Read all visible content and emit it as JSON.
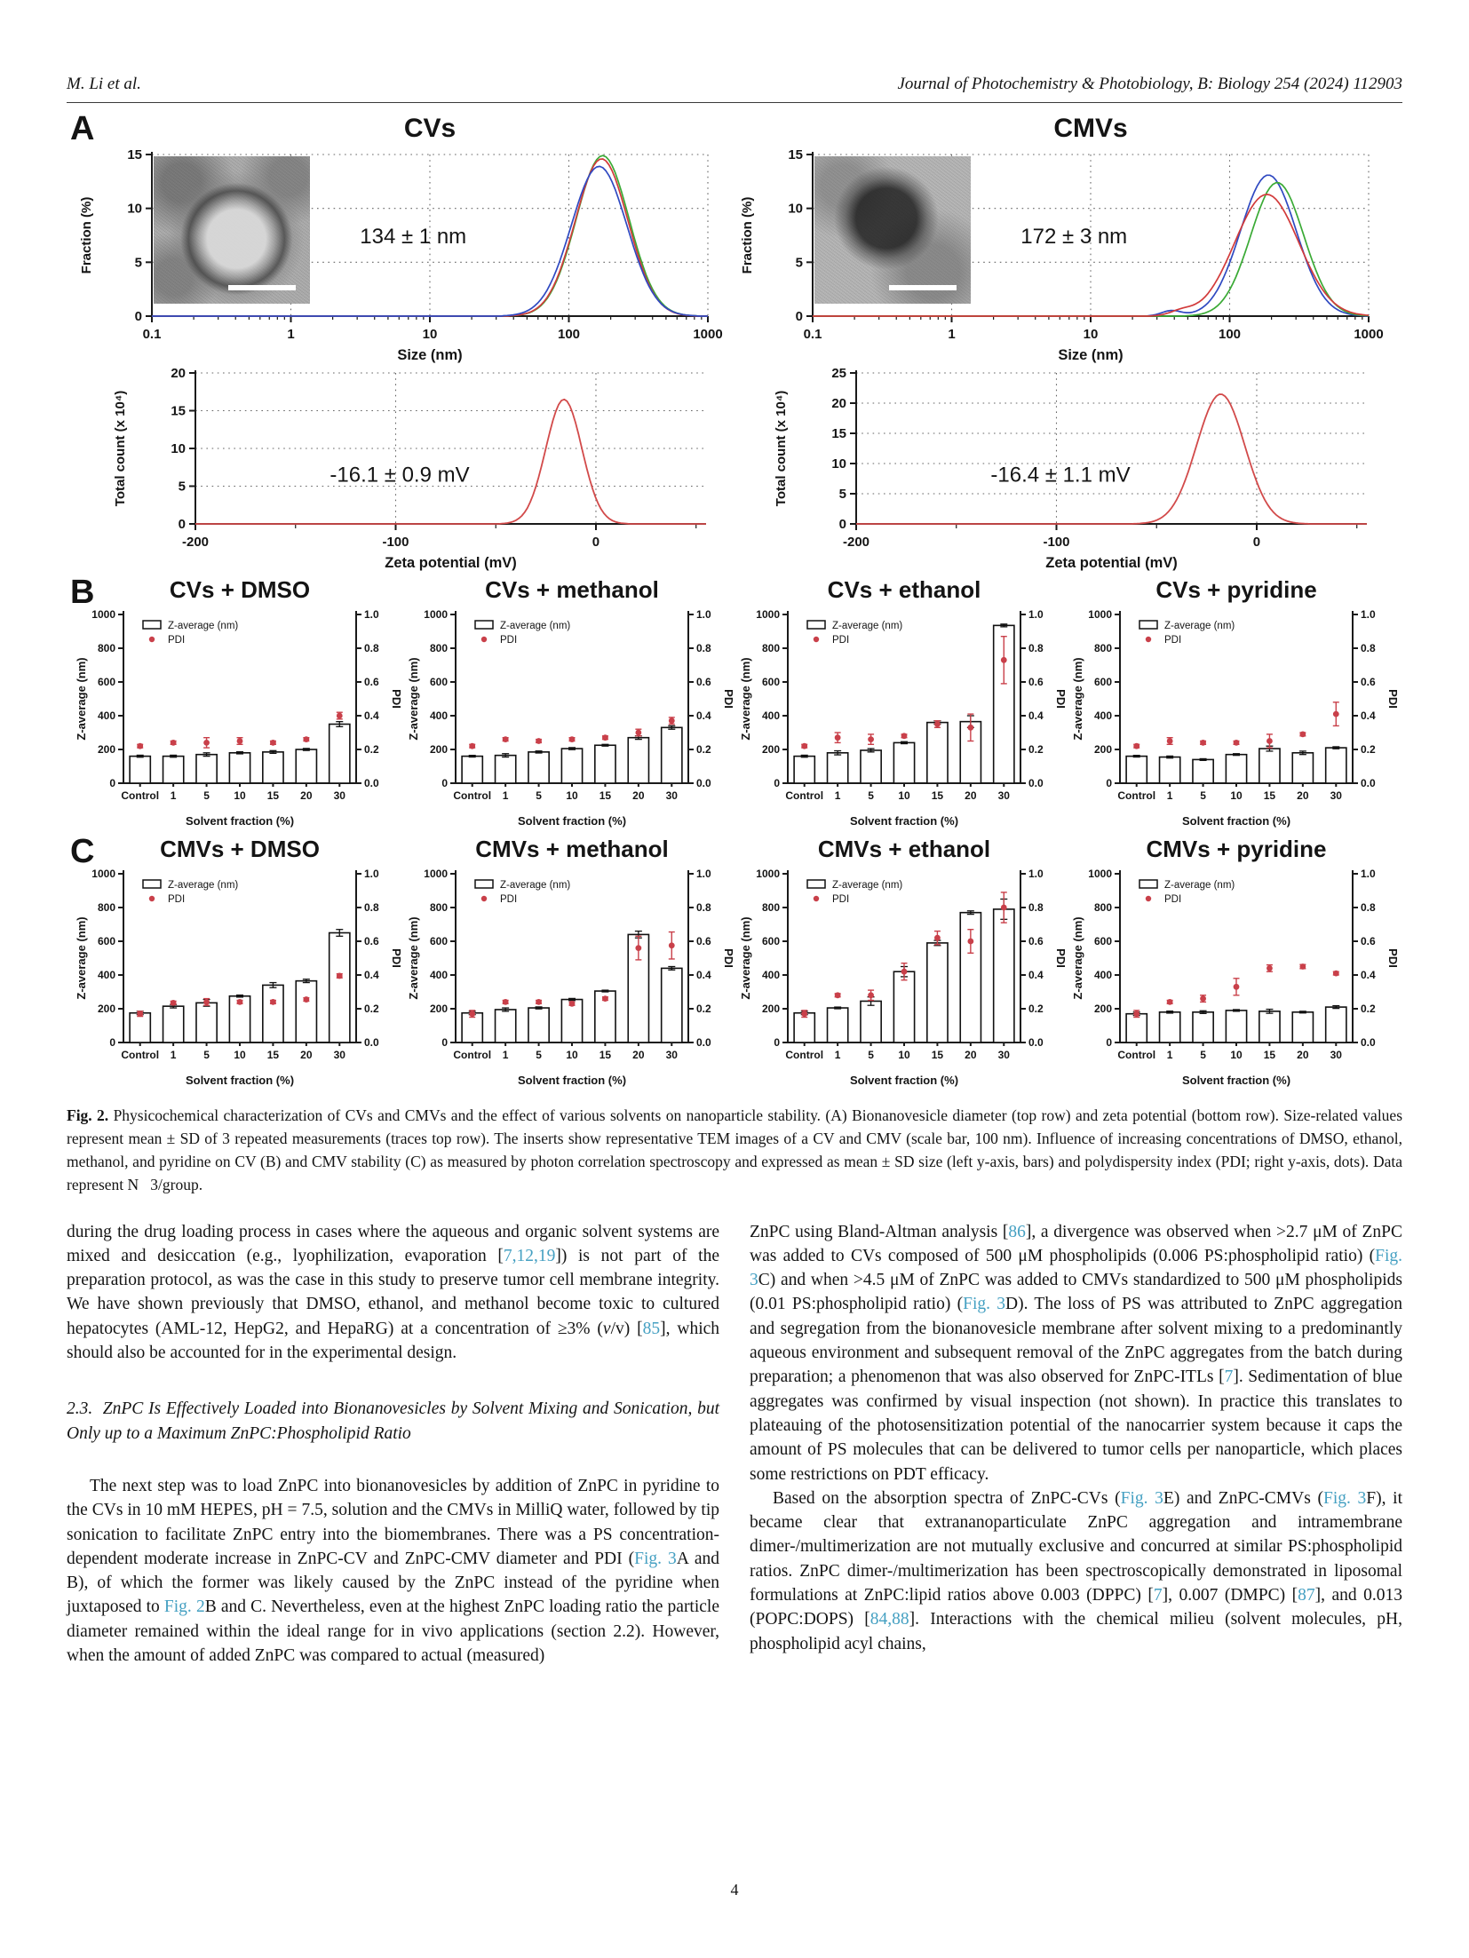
{
  "page": {
    "header_left": "M. Li et al.",
    "header_right": "Journal of Photochemistry & Photobiology, B: Biology 254 (2024) 112903",
    "page_number": "4"
  },
  "figure": {
    "panel_a_label": "A",
    "panel_b_label": "B",
    "panel_c_label": "C",
    "caption_tag": "Fig. 2.",
    "caption_text": "Physicochemical characterization of CVs and CMVs and the effect of various solvents on nanoparticle stability. (A) Bionanovesicle diameter (top row) and zeta potential (bottom row). Size-related values represent mean ± SD of 3 repeated measurements (traces top row). The inserts show representative TEM images of a CV and CMV (scale bar, 100 nm). Influence of increasing concentrations of DMSO, ethanol, methanol, and pyridine on CV (B) and CMV stability (C) as measured by photon correlation spectroscopy and expressed as mean ± SD size (left y-axis, bars) and polydispersity index (PDI; right y-axis, dots). Data represent N   3/group."
  },
  "chart_data": [
    {
      "id": "cv-size",
      "type": "line",
      "title": "CVs",
      "xlabel": "Size (nm)",
      "ylabel": "Fraction (%)",
      "xscale": "log",
      "xlim": [
        0.1,
        1000
      ],
      "ylim": [
        0,
        15
      ],
      "yticks": [
        0,
        5,
        10,
        15
      ],
      "xticks": [
        0.1,
        1,
        10,
        100,
        1000
      ],
      "xgrid": [
        1,
        10,
        100,
        1000
      ],
      "annotation": "134 ± 1 nm",
      "series": [
        {
          "name": "trace-1",
          "color": "#3aaa35",
          "center": 175,
          "sigma": 0.19,
          "peak": 14.9
        },
        {
          "name": "trace-2",
          "color": "#d23a3a",
          "center": 172,
          "sigma": 0.19,
          "peak": 14.6
        },
        {
          "name": "trace-3",
          "color": "#2f49c1",
          "center": 165,
          "sigma": 0.2,
          "peak": 13.9
        }
      ]
    },
    {
      "id": "cmv-size",
      "type": "line",
      "title": "CMVs",
      "xlabel": "Size (nm)",
      "ylabel": "Fraction (%)",
      "xscale": "log",
      "xlim": [
        0.1,
        1000
      ],
      "ylim": [
        0,
        15
      ],
      "yticks": [
        0,
        5,
        10,
        15
      ],
      "xticks": [
        0.1,
        1,
        10,
        100,
        1000
      ],
      "xgrid": [
        1,
        10,
        100,
        1000
      ],
      "annotation": "172 ± 3 nm",
      "series": [
        {
          "name": "trace-1",
          "color": "#2f49c1",
          "center": 190,
          "sigma": 0.2,
          "peak": 13.1,
          "bump": {
            "center": 38,
            "sigma": 0.07,
            "peak": 0.5
          }
        },
        {
          "name": "trace-2",
          "color": "#3aaa35",
          "center": 220,
          "sigma": 0.19,
          "peak": 12.4
        },
        {
          "name": "trace-3",
          "color": "#d23a3a",
          "center": 185,
          "sigma": 0.23,
          "peak": 11.3,
          "bump": {
            "center": 45,
            "sigma": 0.08,
            "peak": 0.4
          }
        }
      ]
    },
    {
      "id": "cv-zeta",
      "type": "line",
      "xlabel": "Zeta potential (mV)",
      "ylabel": "Total count (x 10⁴)",
      "xscale": "linear",
      "xlim": [
        -200,
        55
      ],
      "ylim": [
        0,
        20
      ],
      "yticks": [
        0,
        5,
        10,
        15,
        20
      ],
      "xticks": [
        -200,
        -100,
        0
      ],
      "xminor": [
        -150,
        -50,
        50
      ],
      "xgrid": [
        -100,
        0
      ],
      "annotation": "-16.1 ± 0.9 mV",
      "series": [
        {
          "name": "zeta-trace",
          "color": "#d24a4a",
          "center": -16,
          "sigma": 9,
          "peak": 16.5
        }
      ]
    },
    {
      "id": "cmv-zeta",
      "type": "line",
      "xlabel": "Zeta potential (mV)",
      "ylabel": "Total count (x 10⁴)",
      "xscale": "linear",
      "xlim": [
        -200,
        55
      ],
      "ylim": [
        0,
        25
      ],
      "yticks": [
        0,
        5,
        10,
        15,
        20,
        25
      ],
      "xticks": [
        -200,
        -100,
        0
      ],
      "xminor": [
        -150,
        -50,
        50
      ],
      "xgrid": [
        -100,
        0
      ],
      "annotation": "-16.4 ± 1.1 mV",
      "series": [
        {
          "name": "zeta-trace",
          "color": "#d24a4a",
          "center": -18,
          "sigma": 12,
          "peak": 21.5
        }
      ]
    },
    {
      "id": "cv-dmso",
      "type": "bar",
      "title": "CVs + DMSO",
      "categories": [
        "Control",
        "1",
        "5",
        "10",
        "15",
        "20",
        "30"
      ],
      "xlabel": "Solvent fraction (%)",
      "left_axis": {
        "label": "Z-average (nm)",
        "lim": [
          0,
          1000
        ],
        "ticks": [
          0,
          200,
          400,
          600,
          800,
          1000
        ]
      },
      "right_axis": {
        "label": "PDI",
        "lim": [
          0,
          1
        ],
        "ticks": [
          0,
          0.2,
          0.4,
          0.6,
          0.8,
          1.0
        ]
      },
      "legend": [
        "Z-average (nm)",
        "PDI"
      ],
      "bar_color": "#ffffff",
      "dot_color": "#c9404a",
      "z_values": [
        160,
        160,
        170,
        180,
        185,
        200,
        350
      ],
      "z_err": [
        6,
        6,
        10,
        6,
        8,
        6,
        15
      ],
      "pdi_values": [
        0.22,
        0.24,
        0.24,
        0.25,
        0.24,
        0.26,
        0.4
      ],
      "pdi_err": [
        0.01,
        0.01,
        0.03,
        0.02,
        0.01,
        0.01,
        0.02
      ]
    },
    {
      "id": "cv-methanol",
      "type": "bar",
      "title": "CVs + methanol",
      "categories": [
        "Control",
        "1",
        "5",
        "10",
        "15",
        "20",
        "30"
      ],
      "xlabel": "Solvent fraction (%)",
      "left_axis": {
        "label": "Z-average (nm)",
        "lim": [
          0,
          1000
        ],
        "ticks": [
          0,
          200,
          400,
          600,
          800,
          1000
        ]
      },
      "right_axis": {
        "label": "PDI",
        "lim": [
          0,
          1
        ],
        "ticks": [
          0,
          0.2,
          0.4,
          0.6,
          0.8,
          1.0
        ]
      },
      "legend": [
        "Z-average (nm)",
        "PDI"
      ],
      "bar_color": "#ffffff",
      "dot_color": "#c9404a",
      "z_values": [
        160,
        165,
        185,
        205,
        225,
        270,
        330
      ],
      "z_err": [
        5,
        10,
        6,
        6,
        5,
        10,
        10
      ],
      "pdi_values": [
        0.22,
        0.26,
        0.25,
        0.26,
        0.27,
        0.3,
        0.37
      ],
      "pdi_err": [
        0.01,
        0.01,
        0.01,
        0.01,
        0.01,
        0.02,
        0.02
      ]
    },
    {
      "id": "cv-ethanol",
      "type": "bar",
      "title": "CVs + ethanol",
      "categories": [
        "Control",
        "1",
        "5",
        "10",
        "15",
        "20",
        "30"
      ],
      "xlabel": "Solvent fraction (%)",
      "left_axis": {
        "label": "Z-average (nm)",
        "lim": [
          0,
          1000
        ],
        "ticks": [
          0,
          200,
          400,
          600,
          800,
          1000
        ]
      },
      "right_axis": {
        "label": "PDI",
        "lim": [
          0,
          1
        ],
        "ticks": [
          0,
          0.2,
          0.4,
          0.6,
          0.8,
          1.0
        ]
      },
      "legend": [
        "Z-average (nm)",
        "PDI"
      ],
      "bar_color": "#ffffff",
      "dot_color": "#c9404a",
      "z_values": [
        160,
        180,
        195,
        240,
        360,
        365,
        935
      ],
      "z_err": [
        6,
        12,
        10,
        6,
        10,
        35,
        8
      ],
      "pdi_values": [
        0.22,
        0.27,
        0.26,
        0.28,
        0.35,
        0.33,
        0.73
      ],
      "pdi_err": [
        0.01,
        0.03,
        0.03,
        0.01,
        0.02,
        0.08,
        0.14
      ]
    },
    {
      "id": "cv-pyridine",
      "type": "bar",
      "title": "CVs + pyridine",
      "categories": [
        "Control",
        "1",
        "5",
        "10",
        "15",
        "20",
        "30"
      ],
      "xlabel": "Solvent fraction (%)",
      "left_axis": {
        "label": "Z-average (nm)",
        "lim": [
          0,
          1000
        ],
        "ticks": [
          0,
          200,
          400,
          600,
          800,
          1000
        ]
      },
      "right_axis": {
        "label": "PDI",
        "lim": [
          0,
          1
        ],
        "ticks": [
          0,
          0.2,
          0.4,
          0.6,
          0.8,
          1.0
        ]
      },
      "legend": [
        "Z-average (nm)",
        "PDI"
      ],
      "bar_color": "#ffffff",
      "dot_color": "#c9404a",
      "z_values": [
        160,
        155,
        140,
        170,
        205,
        180,
        210
      ],
      "z_err": [
        5,
        6,
        5,
        5,
        15,
        10,
        6
      ],
      "pdi_values": [
        0.22,
        0.25,
        0.24,
        0.24,
        0.25,
        0.29,
        0.41
      ],
      "pdi_err": [
        0.01,
        0.02,
        0.01,
        0.01,
        0.04,
        0.01,
        0.07
      ]
    },
    {
      "id": "cmv-dmso",
      "type": "bar",
      "title": "CMVs + DMSO",
      "categories": [
        "Control",
        "1",
        "5",
        "10",
        "15",
        "20",
        "30"
      ],
      "xlabel": "Solvent fraction (%)",
      "left_axis": {
        "label": "Z-average (nm)",
        "lim": [
          0,
          1000
        ],
        "ticks": [
          0,
          200,
          400,
          600,
          800,
          1000
        ]
      },
      "right_axis": {
        "label": "PDI",
        "lim": [
          0,
          1
        ],
        "ticks": [
          0,
          0.2,
          0.4,
          0.6,
          0.8,
          1.0
        ]
      },
      "legend": [
        "Z-average (nm)",
        "PDI"
      ],
      "bar_color": "#ffffff",
      "dot_color": "#c9404a",
      "z_values": [
        175,
        215,
        235,
        275,
        340,
        365,
        650
      ],
      "z_err": [
        10,
        10,
        20,
        6,
        15,
        10,
        20
      ],
      "pdi_values": [
        0.17,
        0.235,
        0.24,
        0.24,
        0.24,
        0.255,
        0.395
      ],
      "pdi_err": [
        0.015,
        0.01,
        0.02,
        0.01,
        0.01,
        0.01,
        0.012
      ]
    },
    {
      "id": "cmv-methanol",
      "type": "bar",
      "title": "CMVs + methanol",
      "categories": [
        "Control",
        "1",
        "5",
        "10",
        "15",
        "20",
        "30"
      ],
      "xlabel": "Solvent fraction (%)",
      "left_axis": {
        "label": "Z-average (nm)",
        "lim": [
          0,
          1000
        ],
        "ticks": [
          0,
          200,
          400,
          600,
          800,
          1000
        ]
      },
      "right_axis": {
        "label": "PDI",
        "lim": [
          0,
          1
        ],
        "ticks": [
          0,
          0.2,
          0.4,
          0.6,
          0.8,
          1.0
        ]
      },
      "legend": [
        "Z-average (nm)",
        "PDI"
      ],
      "bar_color": "#ffffff",
      "dot_color": "#c9404a",
      "z_values": [
        175,
        195,
        205,
        255,
        305,
        640,
        440
      ],
      "z_err": [
        10,
        10,
        6,
        6,
        5,
        20,
        10
      ],
      "pdi_values": [
        0.17,
        0.24,
        0.24,
        0.23,
        0.26,
        0.56,
        0.575
      ],
      "pdi_err": [
        0.02,
        0.01,
        0.01,
        0.01,
        0.01,
        0.07,
        0.08
      ]
    },
    {
      "id": "cmv-ethanol",
      "type": "bar",
      "title": "CMVs + ethanol",
      "categories": [
        "Control",
        "1",
        "5",
        "10",
        "15",
        "20",
        "30"
      ],
      "xlabel": "Solvent fraction (%)",
      "left_axis": {
        "label": "Z-average (nm)",
        "lim": [
          0,
          1000
        ],
        "ticks": [
          0,
          200,
          400,
          600,
          800,
          1000
        ]
      },
      "right_axis": {
        "label": "PDI",
        "lim": [
          0,
          1
        ],
        "ticks": [
          0,
          0.2,
          0.4,
          0.6,
          0.8,
          1.0
        ]
      },
      "legend": [
        "Z-average (nm)",
        "PDI"
      ],
      "bar_color": "#ffffff",
      "dot_color": "#c9404a",
      "z_values": [
        175,
        205,
        245,
        420,
        590,
        770,
        790
      ],
      "z_err": [
        10,
        5,
        25,
        30,
        15,
        10,
        60
      ],
      "pdi_values": [
        0.17,
        0.28,
        0.28,
        0.42,
        0.62,
        0.6,
        0.8
      ],
      "pdi_err": [
        0.02,
        0.01,
        0.03,
        0.05,
        0.04,
        0.07,
        0.09
      ]
    },
    {
      "id": "cmv-pyridine",
      "type": "bar",
      "title": "CMVs + pyridine",
      "categories": [
        "Control",
        "1",
        "5",
        "10",
        "15",
        "20",
        "30"
      ],
      "xlabel": "Solvent fraction (%)",
      "left_axis": {
        "label": "Z-average (nm)",
        "lim": [
          0,
          1000
        ],
        "ticks": [
          0,
          200,
          400,
          600,
          800,
          1000
        ]
      },
      "right_axis": {
        "label": "PDI",
        "lim": [
          0,
          1
        ],
        "ticks": [
          0,
          0.2,
          0.4,
          0.6,
          0.8,
          1.0
        ]
      },
      "legend": [
        "Z-average (nm)",
        "PDI"
      ],
      "bar_color": "#ffffff",
      "dot_color": "#c9404a",
      "z_values": [
        170,
        180,
        180,
        190,
        185,
        180,
        210
      ],
      "z_err": [
        10,
        6,
        8,
        5,
        12,
        5,
        8
      ],
      "pdi_values": [
        0.17,
        0.24,
        0.26,
        0.33,
        0.44,
        0.45,
        0.41
      ],
      "pdi_err": [
        0.02,
        0.01,
        0.02,
        0.05,
        0.02,
        0.012,
        0.01
      ]
    }
  ],
  "body": {
    "section_heading": "2.3.  ZnPC Is Effectively Loaded into Bionanovesicles by Solvent Mixing and Sonication, but Only up to a Maximum ZnPC:Phospholipid Ratio",
    "left": [
      [
        {
          "text": "during the drug loading process in cases where the aqueous and organic solvent systems are mixed and desiccation (e.g., lyophilization, evaporation ["
        },
        {
          "text": "7,12,19",
          "link": true
        },
        {
          "text": "]) is not part of the preparation protocol, as was the case in this study to preserve tumor cell membrane integrity. We have shown previously that DMSO, ethanol, and methanol become toxic to cultured hepatocytes (AML-12, HepG2, and HepaRG) at a concentration of ≥3% ("
        },
        {
          "text": "v",
          "italic": true
        },
        {
          "text": "/v) ["
        },
        {
          "text": "85",
          "link": true
        },
        {
          "text": "], which should also be accounted for in the experimental design."
        }
      ],
      [
        {
          "text": "The next step was to load ZnPC into bionanovesicles by addition of ZnPC in pyridine to the CVs in 10 mM HEPES, pH = 7.5, solution and the CMVs in MilliQ water, followed by tip sonication to facilitate ZnPC entry into the biomembranes. There was a PS concentration-dependent moderate increase in ZnPC-CV and ZnPC-CMV diameter and PDI ("
        },
        {
          "text": "Fig. 3",
          "link": true
        },
        {
          "text": "A and B), of which the former was likely caused by the ZnPC instead of the pyridine when juxtaposed to "
        },
        {
          "text": "Fig. 2",
          "link": true
        },
        {
          "text": "B and C. Nevertheless, even at the highest ZnPC loading ratio the particle diameter remained within the ideal range for in vivo applications (section 2.2). However, when the amount of added ZnPC was compared to actual (measured)"
        }
      ]
    ],
    "right": [
      [
        {
          "text": "ZnPC using Bland-Altman analysis ["
        },
        {
          "text": "86",
          "link": true
        },
        {
          "text": "], a divergence was observed when >2.7 μM of ZnPC was added to CVs composed of 500 μM phospholipids (0.006 PS:phospholipid ratio) ("
        },
        {
          "text": "Fig. 3",
          "link": true
        },
        {
          "text": "C) and when >4.5 μM of ZnPC was added to CMVs standardized to 500 μM phospholipids (0.01 PS:phospholipid ratio) ("
        },
        {
          "text": "Fig. 3",
          "link": true
        },
        {
          "text": "D). The loss of PS was attributed to ZnPC aggregation and segregation from the bionanovesicle membrane after solvent mixing to a predominantly aqueous environment and subsequent removal of the ZnPC aggregates from the batch during preparation; a phenomenon that was also observed for ZnPC-ITLs ["
        },
        {
          "text": "7",
          "link": true
        },
        {
          "text": "]. Sedimentation of blue aggregates was confirmed by visual inspection (not shown). In practice this translates to plateauing of the photosensitization potential of the nanocarrier system because it caps the amount of PS molecules that can be delivered to tumor cells per nanoparticle, which places some restrictions on PDT efficacy."
        }
      ],
      [
        {
          "text": "Based on the absorption spectra of ZnPC-CVs ("
        },
        {
          "text": "Fig. 3",
          "link": true
        },
        {
          "text": "E) and ZnPC-CMVs ("
        },
        {
          "text": "Fig. 3",
          "link": true
        },
        {
          "text": "F), it became clear that extrananoparticulate ZnPC aggregation and intramembrane dimer-/multimerization are not mutually exclusive and concurred at similar PS:phospholipid ratios. ZnPC dimer-/multimerization has been spectroscopically demonstrated in liposomal formulations at ZnPC:lipid ratios above 0.003 (DPPC) ["
        },
        {
          "text": "7",
          "link": true
        },
        {
          "text": "], 0.007 (DMPC) ["
        },
        {
          "text": "87",
          "link": true
        },
        {
          "text": "], and 0.013 (POPC:DOPS) ["
        },
        {
          "text": "84,88",
          "link": true
        },
        {
          "text": "]. Interactions with the chemical milieu (solvent molecules, pH, phospholipid acyl chains,"
        }
      ]
    ]
  }
}
